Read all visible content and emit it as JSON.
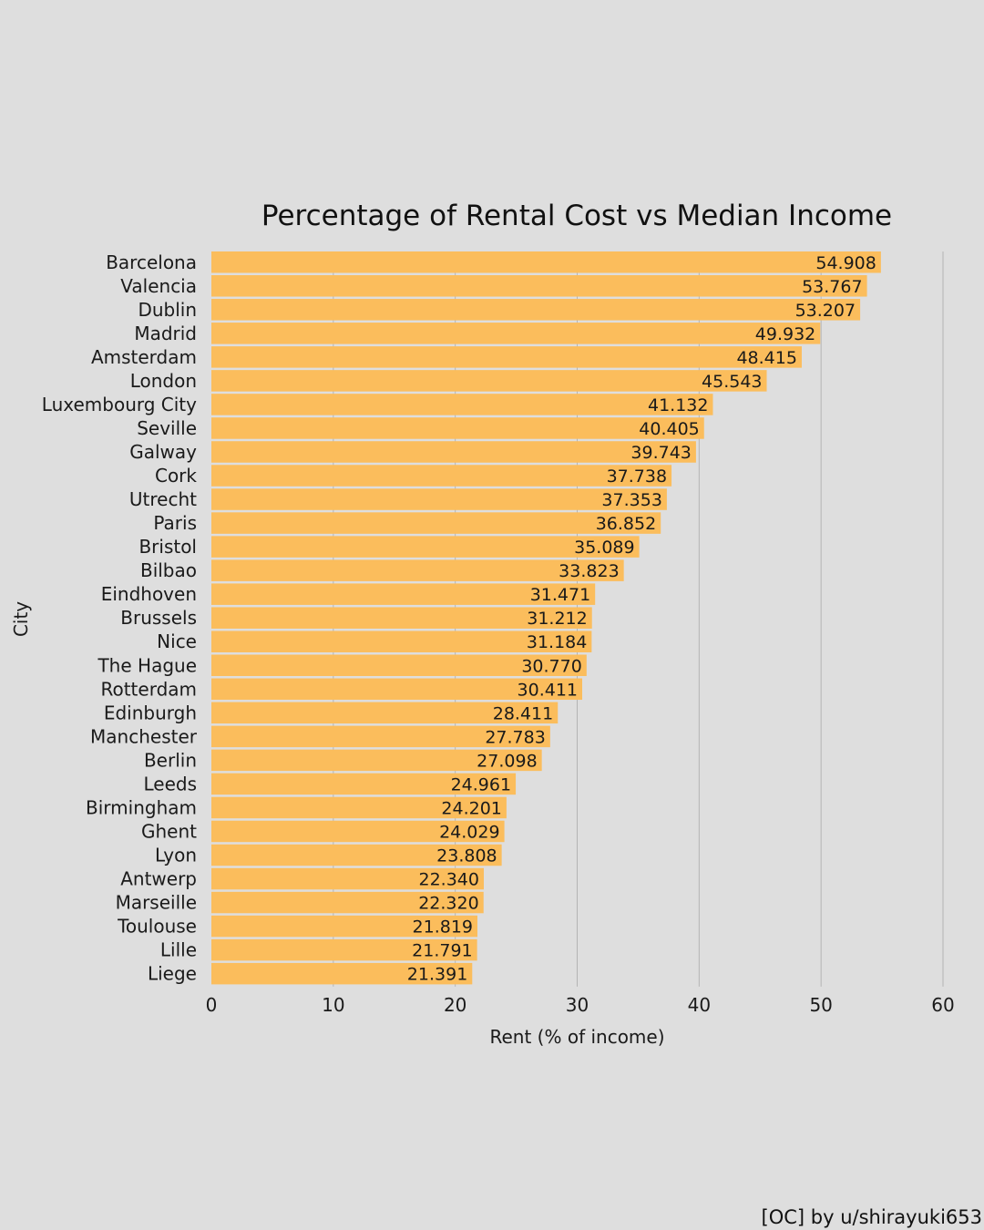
{
  "chart_data": {
    "type": "bar",
    "orientation": "horizontal",
    "title": "Percentage of Rental Cost vs Median Income",
    "xlabel": "Rent (% of income)",
    "ylabel": "City",
    "xlim": [
      0,
      60
    ],
    "xticks": [
      0,
      10,
      20,
      30,
      40,
      50,
      60
    ],
    "grid": "vertical",
    "bar_color": "#fbbd5c",
    "categories": [
      "Barcelona",
      "Valencia",
      "Dublin",
      "Madrid",
      "Amsterdam",
      "London",
      "Luxembourg City",
      "Seville",
      "Galway",
      "Cork",
      "Utrecht",
      "Paris",
      "Bristol",
      "Bilbao",
      "Eindhoven",
      "Brussels",
      "Nice",
      "The Hague",
      "Rotterdam",
      "Edinburgh",
      "Manchester",
      "Berlin",
      "Leeds",
      "Birmingham",
      "Ghent",
      "Lyon",
      "Antwerp",
      "Marseille",
      "Toulouse",
      "Lille",
      "Liege"
    ],
    "values": [
      54.908,
      53.767,
      53.207,
      49.932,
      48.415,
      45.543,
      41.132,
      40.405,
      39.743,
      37.738,
      37.353,
      36.852,
      35.089,
      33.823,
      31.471,
      31.212,
      31.184,
      30.77,
      30.411,
      28.411,
      27.783,
      27.098,
      24.961,
      24.201,
      24.029,
      23.808,
      22.34,
      22.32,
      21.819,
      21.791,
      21.391
    ],
    "value_labels": [
      "54.908",
      "53.767",
      "53.207",
      "49.932",
      "48.415",
      "45.543",
      "41.132",
      "40.405",
      "39.743",
      "37.738",
      "37.353",
      "36.852",
      "35.089",
      "33.823",
      "31.471",
      "31.212",
      "31.184",
      "30.770",
      "30.411",
      "28.411",
      "27.783",
      "27.098",
      "24.961",
      "24.201",
      "24.029",
      "23.808",
      "22.340",
      "22.320",
      "21.819",
      "21.791",
      "21.391"
    ]
  },
  "credit": "[OC] by u/shirayuki653"
}
